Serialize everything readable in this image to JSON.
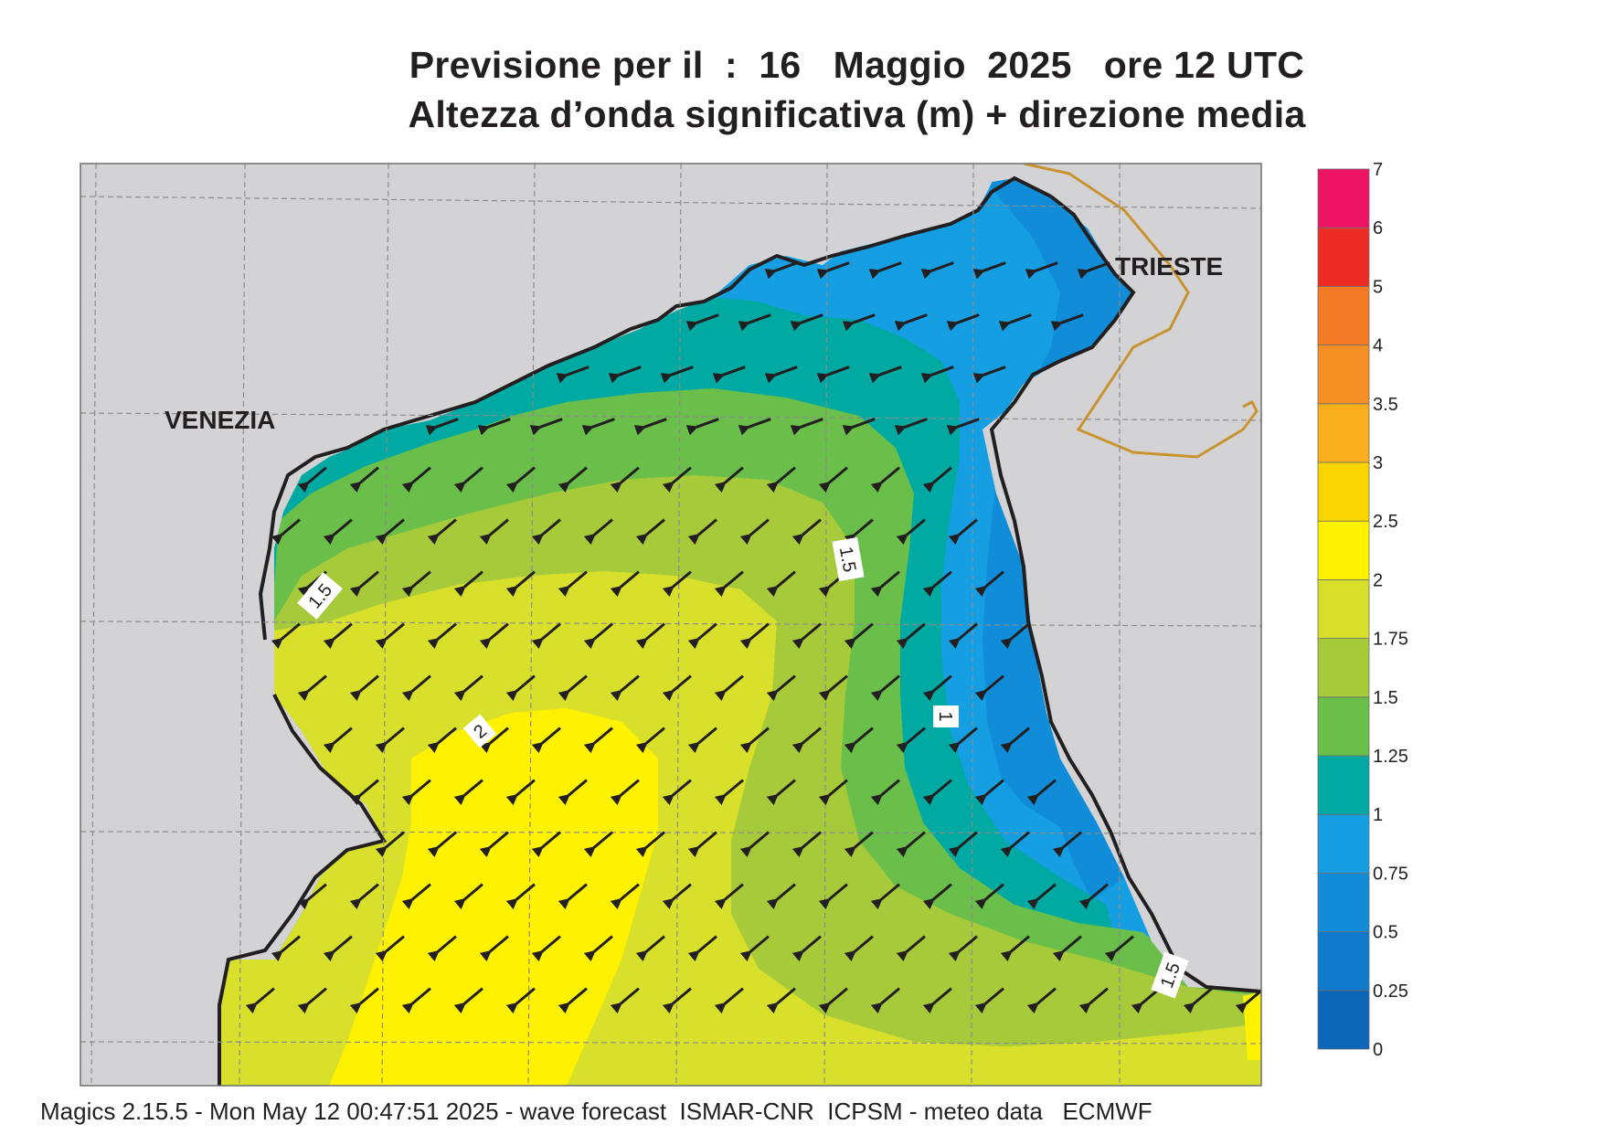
{
  "title": {
    "line1": "Previsione per il  :  16   Maggio  2025   ore 12 UTC",
    "line2": "Altezza d’onda significativa (m) + direzione media"
  },
  "cities": [
    {
      "name": "VENEZIA"
    },
    {
      "name": "TRIESTE"
    }
  ],
  "contour_labels": [
    "1.5",
    "1.5",
    "2",
    "1",
    "1.5"
  ],
  "colorbar": {
    "ticks": [
      "0",
      "0.25",
      "0.5",
      "0.75",
      "1",
      "1.25",
      "1.5",
      "1.75",
      "2",
      "2.5",
      "3",
      "3.5",
      "4",
      "5",
      "6",
      "7"
    ],
    "colors": [
      "#0b66b8",
      "#0f7acb",
      "#108cd8",
      "#159fe2",
      "#00aaa2",
      "#6abe4a",
      "#a7ca3a",
      "#d8e02b",
      "#fff200",
      "#fcd600",
      "#f9ae1b",
      "#f58f23",
      "#f47a26",
      "#ec2b24",
      "#ed1563"
    ]
  },
  "wave_direction": "SW",
  "colors": {
    "land": "#d3d3d5",
    "coast": "#231f20",
    "border": "#c9932f",
    "grid": "#8c8c8c"
  },
  "footer": "Magics 2.15.5 - Mon May 12 00:47:51 2025 - wave forecast  ISMAR-CNR  ICPSM - meteo data   ECMWF"
}
